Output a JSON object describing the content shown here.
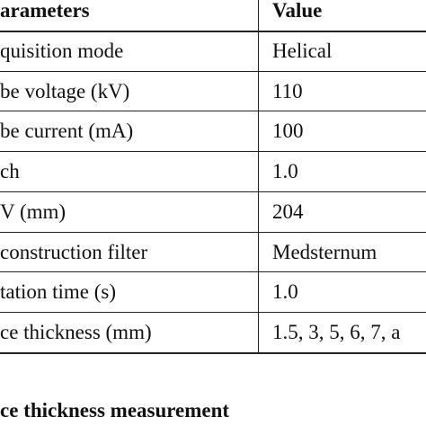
{
  "table": {
    "header": [
      "arameters",
      "Value"
    ],
    "rows": [
      [
        "quisition mode",
        "Helical"
      ],
      [
        "be voltage (kV)",
        "110"
      ],
      [
        "be current (mA)",
        "100"
      ],
      [
        "ch",
        "1.0"
      ],
      [
        "V (mm)",
        "204"
      ],
      [
        "construction filter",
        "Medsternum"
      ],
      [
        "tation time (s)",
        "1.0"
      ],
      [
        "ce thickness (mm)",
        "1.5, 3, 5, 6, 7, a"
      ]
    ]
  },
  "caption": "ce thickness measurement"
}
